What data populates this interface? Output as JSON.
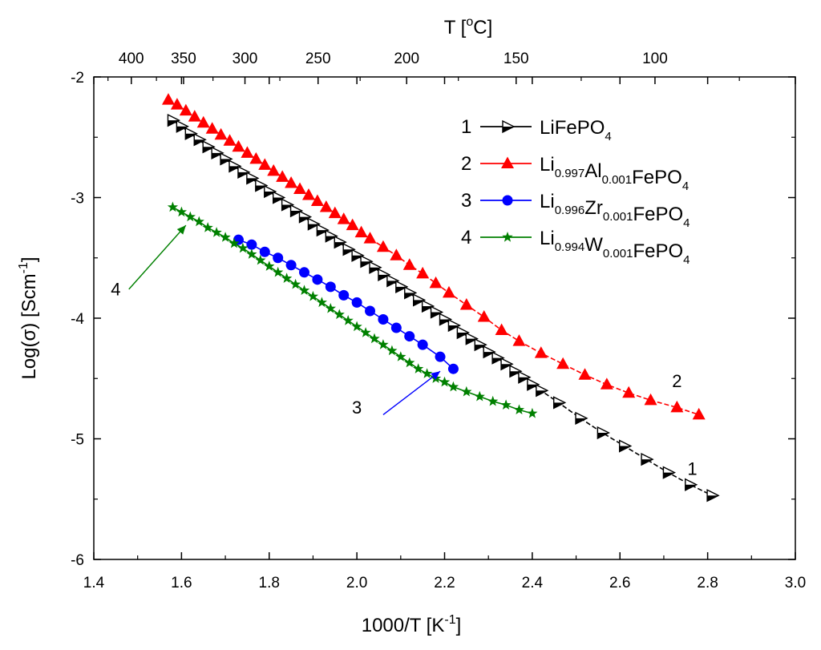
{
  "chart_data": {
    "type": "scatter",
    "x_axis": {
      "label": "1000/T [K",
      "label_sup": "-1",
      "label_end": "]",
      "min": 1.4,
      "max": 3.0,
      "major": [
        1.4,
        1.6,
        1.8,
        2.0,
        2.2,
        2.4,
        2.6,
        2.8,
        3.0
      ],
      "tick_labels": [
        "1.4",
        "1.6",
        "1.8",
        "2.0",
        "2.2",
        "2.4",
        "2.6",
        "2.8",
        "3.0"
      ]
    },
    "y_axis": {
      "label": "Log(σ) [Scm",
      "label_sup": "-1",
      "label_end": "]",
      "min": -6,
      "max": -2,
      "major": [
        -6,
        -5,
        -4,
        -3,
        -2
      ],
      "tick_labels": [
        "-6",
        "-5",
        "-4",
        "-3",
        "-2"
      ]
    },
    "top_axis": {
      "label": "T [",
      "label_sup": "o",
      "label_end": "C]",
      "temps_c": [
        400,
        350,
        300,
        250,
        200,
        150,
        100
      ],
      "tick_labels": [
        "400",
        "350",
        "300",
        "250",
        "200",
        "150",
        "100"
      ]
    },
    "series": [
      {
        "id": "1",
        "legend_num": "1",
        "legend_parts": [
          [
            "Li",
            ""
          ],
          [
            "FePO",
            "4"
          ]
        ],
        "color": "#000000",
        "marker": "triangle-right-half",
        "dashed": true,
        "label_pos": [
          2.765,
          -5.3
        ],
        "x": [
          1.58,
          1.6,
          1.62,
          1.64,
          1.66,
          1.68,
          1.7,
          1.72,
          1.74,
          1.76,
          1.78,
          1.8,
          1.82,
          1.84,
          1.86,
          1.88,
          1.9,
          1.92,
          1.94,
          1.96,
          1.98,
          2.0,
          2.02,
          2.04,
          2.06,
          2.08,
          2.1,
          2.12,
          2.14,
          2.16,
          2.18,
          2.2,
          2.22,
          2.24,
          2.26,
          2.28,
          2.3,
          2.32,
          2.34,
          2.36,
          2.38,
          2.4,
          2.42,
          2.46,
          2.51,
          2.56,
          2.61,
          2.66,
          2.71,
          2.76,
          2.81
        ],
        "y": [
          -2.36,
          -2.41,
          -2.47,
          -2.52,
          -2.58,
          -2.63,
          -2.68,
          -2.74,
          -2.79,
          -2.84,
          -2.9,
          -2.95,
          -3.0,
          -3.06,
          -3.11,
          -3.16,
          -3.22,
          -3.27,
          -3.32,
          -3.37,
          -3.43,
          -3.48,
          -3.53,
          -3.58,
          -3.64,
          -3.69,
          -3.74,
          -3.79,
          -3.85,
          -3.9,
          -3.95,
          -4.01,
          -4.06,
          -4.12,
          -4.17,
          -4.22,
          -4.28,
          -4.33,
          -4.38,
          -4.44,
          -4.49,
          -4.55,
          -4.6,
          -4.7,
          -4.83,
          -4.95,
          -5.06,
          -5.17,
          -5.28,
          -5.38,
          -5.47
        ]
      },
      {
        "id": "2",
        "legend_num": "2",
        "legend_parts": [
          [
            "Li",
            "0.997"
          ],
          [
            "Al",
            "0.001"
          ],
          [
            "FePO",
            "4"
          ]
        ],
        "color": "#ff0000",
        "marker": "triangle-up",
        "dashed": true,
        "label_pos": [
          2.73,
          -4.57
        ],
        "x": [
          1.57,
          1.59,
          1.61,
          1.63,
          1.65,
          1.67,
          1.69,
          1.71,
          1.73,
          1.75,
          1.77,
          1.79,
          1.81,
          1.83,
          1.85,
          1.87,
          1.89,
          1.91,
          1.93,
          1.95,
          1.97,
          1.99,
          2.01,
          2.03,
          2.06,
          2.09,
          2.12,
          2.15,
          2.18,
          2.21,
          2.25,
          2.29,
          2.33,
          2.37,
          2.42,
          2.47,
          2.52,
          2.57,
          2.62,
          2.67,
          2.73,
          2.78
        ],
        "y": [
          -2.19,
          -2.23,
          -2.28,
          -2.33,
          -2.38,
          -2.43,
          -2.48,
          -2.53,
          -2.58,
          -2.63,
          -2.68,
          -2.73,
          -2.78,
          -2.83,
          -2.88,
          -2.93,
          -2.98,
          -3.03,
          -3.08,
          -3.13,
          -3.18,
          -3.23,
          -3.29,
          -3.34,
          -3.41,
          -3.48,
          -3.56,
          -3.63,
          -3.71,
          -3.79,
          -3.89,
          -3.99,
          -4.1,
          -4.19,
          -4.29,
          -4.38,
          -4.47,
          -4.55,
          -4.62,
          -4.68,
          -4.74,
          -4.8
        ]
      },
      {
        "id": "3",
        "legend_num": "3",
        "legend_parts": [
          [
            "Li",
            "0.996"
          ],
          [
            "Zr",
            "0.001"
          ],
          [
            "FePO",
            "4"
          ]
        ],
        "color": "#0000ff",
        "marker": "circle",
        "dashed": false,
        "label_pos": [
          2.0,
          -4.79
        ],
        "x": [
          1.73,
          1.76,
          1.79,
          1.82,
          1.85,
          1.88,
          1.91,
          1.94,
          1.97,
          2.0,
          2.03,
          2.06,
          2.09,
          2.12,
          2.15,
          2.19,
          2.22
        ],
        "y": [
          -3.35,
          -3.39,
          -3.45,
          -3.5,
          -3.56,
          -3.62,
          -3.68,
          -3.74,
          -3.81,
          -3.87,
          -3.94,
          -4.01,
          -4.08,
          -4.15,
          -4.22,
          -4.32,
          -4.42
        ]
      },
      {
        "id": "4",
        "legend_num": "4",
        "legend_parts": [
          [
            "Li",
            "0.994"
          ],
          [
            "W",
            "0.001"
          ],
          [
            "FePO",
            "4"
          ]
        ],
        "color": "#008000",
        "marker": "star",
        "dashed": false,
        "label_pos": [
          1.45,
          -3.81
        ],
        "x": [
          1.58,
          1.6,
          1.62,
          1.64,
          1.66,
          1.68,
          1.7,
          1.72,
          1.74,
          1.76,
          1.78,
          1.8,
          1.82,
          1.84,
          1.86,
          1.88,
          1.9,
          1.92,
          1.94,
          1.96,
          1.98,
          2.0,
          2.02,
          2.04,
          2.06,
          2.08,
          2.1,
          2.12,
          2.14,
          2.16,
          2.18,
          2.2,
          2.22,
          2.25,
          2.28,
          2.31,
          2.34,
          2.37,
          2.4
        ],
        "y": [
          -3.08,
          -3.12,
          -3.16,
          -3.2,
          -3.25,
          -3.29,
          -3.33,
          -3.38,
          -3.42,
          -3.47,
          -3.52,
          -3.57,
          -3.62,
          -3.67,
          -3.72,
          -3.77,
          -3.82,
          -3.87,
          -3.92,
          -3.97,
          -4.02,
          -4.07,
          -4.12,
          -4.17,
          -4.22,
          -4.27,
          -4.32,
          -4.37,
          -4.42,
          -4.46,
          -4.5,
          -4.53,
          -4.57,
          -4.61,
          -4.65,
          -4.69,
          -4.72,
          -4.76,
          -4.79
        ]
      }
    ],
    "annotations": [
      {
        "label": "4",
        "from": [
          1.48,
          -3.76
        ],
        "to": [
          1.61,
          -3.23
        ],
        "color": "#008000"
      },
      {
        "label": "3",
        "from": [
          2.06,
          -4.8
        ],
        "to": [
          2.19,
          -4.44
        ],
        "color": "#0000ff"
      }
    ]
  }
}
